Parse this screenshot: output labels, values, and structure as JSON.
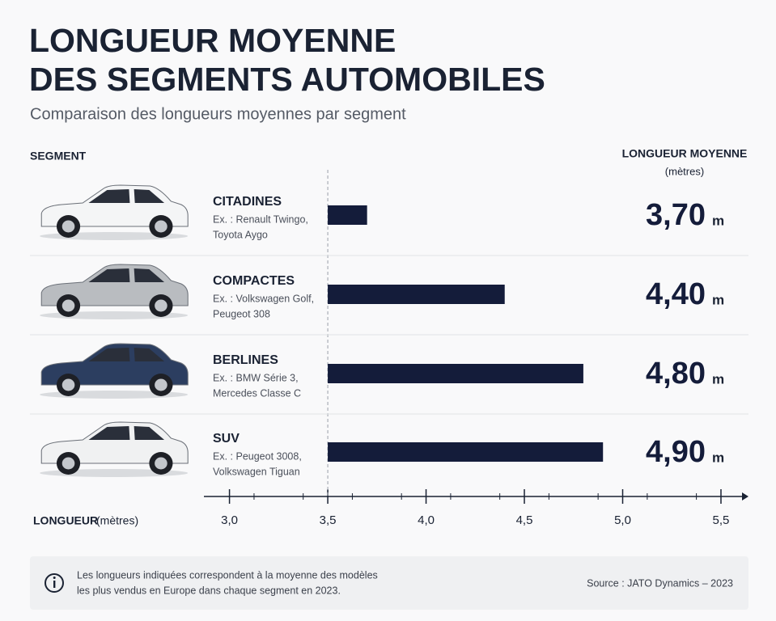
{
  "chart_data": {
    "type": "bar",
    "title": [
      "LONGUEUR MOYENNE",
      "DES SEGMENTS AUTOMOBILES"
    ],
    "subtitle": "Comparaison des longueurs moyennes par segment",
    "category_header": "SEGMENT",
    "value_header": "LONGUEUR MOYENNE",
    "value_header_unit": "(mètres)",
    "categories": [
      "CITADINES",
      "COMPACTES",
      "BERLINES",
      "SUV"
    ],
    "examples": [
      [
        "Ex. : Renault Twingo,",
        "Toyota Aygo"
      ],
      [
        "Ex. : Volkswagen Golf,",
        "Peugeot 308"
      ],
      [
        "Ex. : BMW Série 3,",
        "Mercedes Classe C"
      ],
      [
        "Ex. : Peugeot 3008,",
        "Volkswagen Tiguan"
      ]
    ],
    "values": [
      3.7,
      4.4,
      4.8,
      4.9
    ],
    "value_labels": [
      "3,70",
      "4,40",
      "4,80",
      "4,90"
    ],
    "unit": "m",
    "color": "#141c3a",
    "xlim": [
      2.87,
      5.64
    ],
    "xticks": [
      {
        "value": 3,
        "label": "3,0"
      },
      {
        "value": 3.5,
        "label": "3,5"
      },
      {
        "value": 4,
        "label": "4,0"
      },
      {
        "value": 4.5,
        "label": "4,5"
      },
      {
        "value": 5,
        "label": "5,0"
      },
      {
        "value": 5.5,
        "label": "5,5"
      }
    ],
    "x_label": "LONGUEUR",
    "x_label_unit": "(mètres)",
    "note": [
      "Les longueurs indiquées correspondent à la moyenne des modèles",
      "les plus vendus en Europe dans chaque segment en 2023."
    ],
    "source": "Source : JATO Dynamics – 2023"
  }
}
